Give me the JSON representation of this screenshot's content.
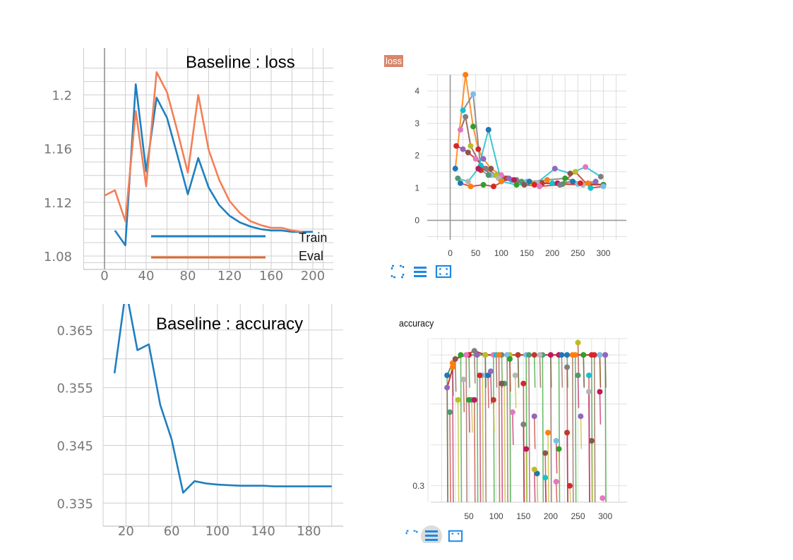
{
  "colors": {
    "train": "#1f7fc0",
    "eval": "#f47f55",
    "legend_eval": "#e06a2c",
    "grid": "#cfcfcf",
    "axis": "#8c8c8c",
    "tick_text": "#777777",
    "tb_blue": "#1e88e5",
    "tb_badge": "#d9866b",
    "tb_palette": [
      "#1f77b4",
      "#ff7f0e",
      "#2ca02c",
      "#d62728",
      "#9467bd",
      "#8c564b",
      "#e377c2",
      "#7f7f7f",
      "#bcbd22",
      "#17becf",
      "#7bbfe8",
      "#c0392b",
      "#4e9a6e",
      "#b5b5b5",
      "#c2185b"
    ]
  },
  "tb_toolbar_icons": [
    "expand-icon",
    "list-icon",
    "fit-domain-icon"
  ],
  "chart_data": [
    {
      "type": "line",
      "title": "Baseline : loss",
      "xlim": [
        0,
        200
      ],
      "ylim": [
        1.07,
        1.235
      ],
      "xticks": [
        "0",
        "40",
        "80",
        "120",
        "160",
        "200"
      ],
      "xtick_values": [
        0,
        40,
        80,
        120,
        160,
        200
      ],
      "yticks": [
        "1.08",
        "1.12",
        "1.16",
        "1.2"
      ],
      "ytick_values": [
        1.08,
        1.12,
        1.16,
        1.2
      ],
      "legend": [
        "Train",
        "Eval"
      ],
      "legend_position": "bottom-right",
      "grid": true,
      "series": [
        {
          "name": "Train",
          "x": [
            10,
            20,
            30,
            40,
            50,
            60,
            70,
            80,
            90,
            100,
            110,
            120,
            130,
            140,
            150,
            160,
            170,
            180,
            190,
            200
          ],
          "y": [
            1.099,
            1.088,
            1.208,
            1.143,
            1.198,
            1.183,
            1.155,
            1.126,
            1.153,
            1.131,
            1.118,
            1.11,
            1.105,
            1.102,
            1.1,
            1.099,
            1.099,
            1.098,
            1.098,
            1.098
          ]
        },
        {
          "name": "Eval",
          "x": [
            0,
            10,
            20,
            30,
            40,
            50,
            60,
            70,
            80,
            90,
            100,
            110,
            120,
            130,
            140,
            150,
            160,
            170,
            180,
            190
          ],
          "y": [
            1.125,
            1.129,
            1.106,
            1.188,
            1.132,
            1.217,
            1.202,
            1.173,
            1.142,
            1.2,
            1.159,
            1.137,
            1.121,
            1.112,
            1.106,
            1.103,
            1.101,
            1.101,
            1.099,
            1.098
          ]
        }
      ]
    },
    {
      "type": "scatter",
      "title": "loss",
      "xlim": [
        -45,
        345
      ],
      "ylim": [
        -0.6,
        4.5
      ],
      "xticks": [
        "0",
        "50",
        "100",
        "150",
        "200",
        "250",
        "300"
      ],
      "xtick_values": [
        0,
        50,
        100,
        150,
        200,
        250,
        300
      ],
      "yticks": [
        "0",
        "1",
        "2",
        "3",
        "4"
      ],
      "ytick_values": [
        0,
        1,
        2,
        3,
        4
      ],
      "grid": true,
      "series": [
        {
          "x": [
            10,
            30,
            45,
            55,
            65,
            80,
            100,
            130,
            160,
            200,
            250,
            300
          ],
          "y": [
            1.6,
            4.5,
            2.9,
            2.2,
            1.9,
            1.6,
            1.4,
            1.25,
            1.15,
            1.15,
            1.12,
            1.1
          ]
        },
        {
          "x": [
            12,
            25,
            35,
            50,
            70,
            90,
            120,
            150,
            180,
            220,
            260,
            300
          ],
          "y": [
            2.3,
            2.2,
            2.1,
            1.9,
            1.6,
            1.4,
            1.25,
            1.2,
            1.15,
            1.12,
            1.1,
            1.1
          ]
        },
        {
          "x": [
            20,
            30,
            40,
            60,
            80,
            110,
            140,
            170,
            210,
            240,
            270,
            300
          ],
          "y": [
            2.8,
            3.2,
            2.3,
            1.7,
            1.4,
            1.3,
            1.2,
            1.15,
            1.15,
            1.2,
            1.15,
            1.1
          ]
        },
        {
          "x": [
            25,
            45,
            60,
            75,
            95,
            125,
            155,
            190,
            225,
            255,
            285
          ],
          "y": [
            3.4,
            3.9,
            1.55,
            1.4,
            1.3,
            1.25,
            1.2,
            1.25,
            1.3,
            1.15,
            1.2
          ]
        },
        {
          "x": [
            15,
            35,
            55,
            75,
            100,
            130,
            165,
            205,
            235,
            265,
            295
          ],
          "y": [
            1.3,
            1.2,
            1.6,
            2.8,
            1.2,
            1.1,
            1.1,
            1.6,
            1.45,
            1.65,
            1.35
          ]
        },
        {
          "x": [
            20,
            40,
            65,
            85,
            115,
            145,
            175,
            215,
            245,
            275,
            300
          ],
          "y": [
            1.15,
            1.05,
            1.1,
            1.05,
            1.3,
            1.1,
            1.05,
            1.1,
            1.5,
            1.0,
            1.05
          ]
        }
      ]
    },
    {
      "type": "line",
      "title": "Baseline : accuracy",
      "xlim": [
        0,
        210
      ],
      "ylim": [
        0.331,
        0.3695
      ],
      "xticks": [
        "20",
        "60",
        "100",
        "140",
        "180"
      ],
      "xtick_values": [
        20,
        60,
        100,
        140,
        180
      ],
      "yticks": [
        "0.335",
        "0.345",
        "0.355",
        "0.365"
      ],
      "ytick_values": [
        0.335,
        0.345,
        0.355,
        0.365
      ],
      "grid": true,
      "series": [
        {
          "x": [
            10,
            20,
            30,
            40,
            50,
            60,
            70,
            80,
            90,
            100,
            110,
            120,
            130,
            140,
            150,
            160,
            170,
            180,
            190,
            200
          ],
          "y": [
            0.3575,
            0.372,
            0.3615,
            0.3625,
            0.352,
            0.346,
            0.3368,
            0.3388,
            0.3384,
            0.3382,
            0.3381,
            0.338,
            0.338,
            0.338,
            0.3379,
            0.3379,
            0.3379,
            0.3379,
            0.3379,
            0.3379
          ]
        }
      ]
    },
    {
      "type": "scatter",
      "title": "accuracy",
      "xlim": [
        -20,
        340
      ],
      "ylim": [
        0.298,
        0.318
      ],
      "xticks": [
        "50",
        "100",
        "150",
        "200",
        "250",
        "300"
      ],
      "xtick_values": [
        50,
        100,
        150,
        200,
        250,
        300
      ],
      "yticks": [
        "0.3"
      ],
      "ytick_values": [
        0.3
      ],
      "grid": true,
      "series": [
        {
          "x": [
            10,
            20,
            35,
            50,
            65,
            80,
            95,
            110,
            125,
            140,
            155,
            170,
            185,
            200,
            215,
            230,
            245,
            260,
            275,
            290,
            300
          ],
          "y": [
            0.3135,
            0.315,
            0.316,
            0.316,
            0.316,
            0.316,
            0.316,
            0.316,
            0.316,
            0.316,
            0.316,
            0.316,
            0.316,
            0.316,
            0.316,
            0.316,
            0.316,
            0.316,
            0.316,
            0.316,
            0.316
          ]
        },
        {
          "x": [
            10,
            25,
            45,
            60,
            80,
            100,
            120,
            140,
            160,
            180,
            200,
            220,
            240,
            260,
            280,
            300
          ],
          "y": [
            0.312,
            0.3155,
            0.316,
            0.3165,
            0.316,
            0.316,
            0.316,
            0.316,
            0.316,
            0.316,
            0.316,
            0.316,
            0.316,
            0.316,
            0.316,
            0.316
          ]
        },
        {
          "x": [
            30,
            55,
            75,
            95,
            115,
            135,
            155,
            175,
            195,
            215,
            235,
            255,
            275,
            295
          ],
          "y": [
            0.3105,
            0.3105,
            0.3135,
            0.3105,
            0.3125,
            0.3135,
            0.3045,
            0.3015,
            0.3065,
            0.3045,
            0.3,
            0.3085,
            0.3055,
            0.2985
          ]
        },
        {
          "x": [
            15,
            40,
            60,
            85,
            105,
            125,
            150,
            170,
            190,
            210,
            230,
            250,
            270,
            290
          ],
          "y": [
            0.309,
            0.313,
            0.3105,
            0.3135,
            0.316,
            0.3155,
            0.3125,
            0.3085,
            0.304,
            0.3005,
            0.3145,
            0.3175,
            0.3135,
            0.316
          ]
        },
        {
          "x": [
            20,
            50,
            70,
            90,
            110,
            130,
            150,
            170,
            190,
            210,
            230,
            250,
            270,
            290
          ],
          "y": [
            0.3145,
            0.3105,
            0.3135,
            0.314,
            0.3125,
            0.309,
            0.3075,
            0.302,
            0.301,
            0.3055,
            0.3065,
            0.3135,
            0.3115,
            0.3115
          ]
        }
      ]
    }
  ]
}
